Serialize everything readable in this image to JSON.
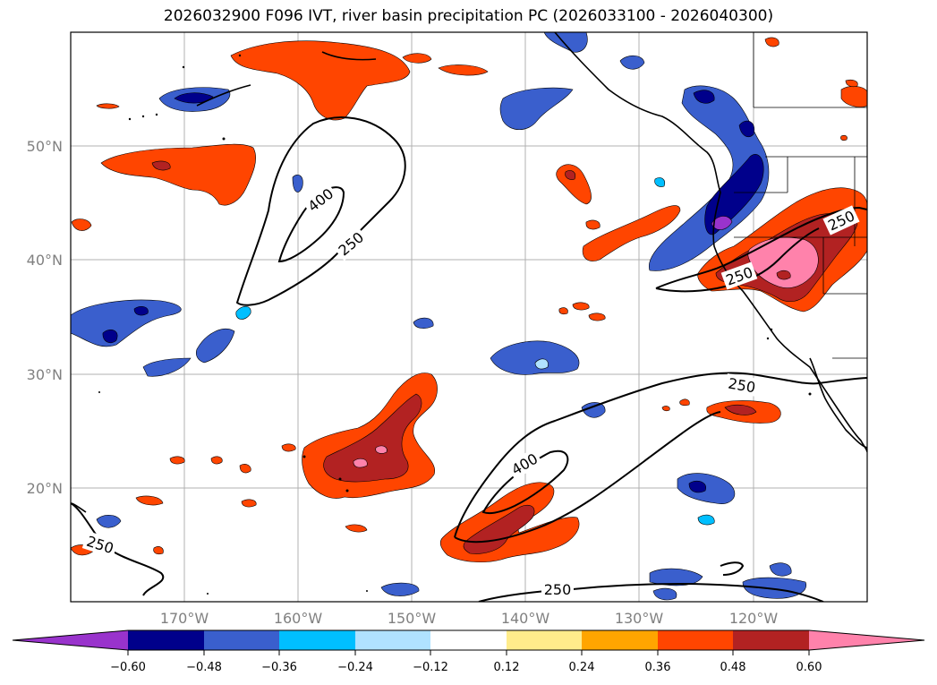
{
  "title": "2026032900 F096 IVT, river basin precipitation PC (2026033100 - 2026040300)",
  "lat_labels": [
    "50°N",
    "40°N",
    "30°N",
    "20°N"
  ],
  "lon_labels": [
    "170°W",
    "160°W",
    "150°W",
    "140°W",
    "130°W",
    "120°W"
  ],
  "colorbar": {
    "ticks": [
      "−0.60",
      "−0.48",
      "−0.36",
      "−0.24",
      "−0.12",
      "0.12",
      "0.24",
      "0.36",
      "0.48",
      "0.60"
    ],
    "colors": [
      "#9933cc",
      "#00008b",
      "#3a5fcd",
      "#00bfff",
      "#b0e2ff",
      "#ffffff",
      "#ffec8b",
      "#ffa500",
      "#ff4500",
      "#b22222",
      "#ff82ab"
    ]
  },
  "contour_labels": [
    "400",
    "250",
    "250",
    "250",
    "400",
    "250",
    "250"
  ]
}
